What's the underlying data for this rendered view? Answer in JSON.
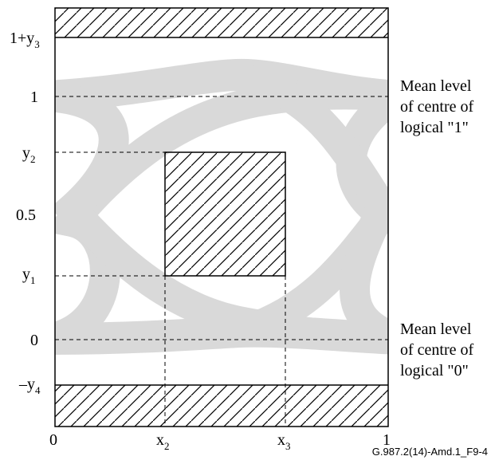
{
  "y_axis": {
    "ticks": [
      {
        "base": "1+y",
        "sub": "3"
      },
      {
        "base": "1",
        "sub": ""
      },
      {
        "base": "y",
        "sub": "2"
      },
      {
        "base": "0.5",
        "sub": ""
      },
      {
        "base": "y",
        "sub": "1"
      },
      {
        "base": "0",
        "sub": ""
      },
      {
        "base": "–y",
        "sub": "4"
      }
    ]
  },
  "x_axis": {
    "ticks": [
      {
        "base": "0",
        "sub": ""
      },
      {
        "base": "x",
        "sub": "2"
      },
      {
        "base": "x",
        "sub": "3"
      },
      {
        "base": "1",
        "sub": ""
      }
    ]
  },
  "annotations": {
    "mean_one": [
      "Mean level",
      "of centre of",
      "logical \"1\""
    ],
    "mean_zero": [
      "Mean level",
      "of centre of",
      "logical \"0\""
    ]
  },
  "caption": "G.987.2(14)-Amd.1_F9-4",
  "colors": {
    "eye": "#d9d9d9",
    "line": "#000000"
  }
}
